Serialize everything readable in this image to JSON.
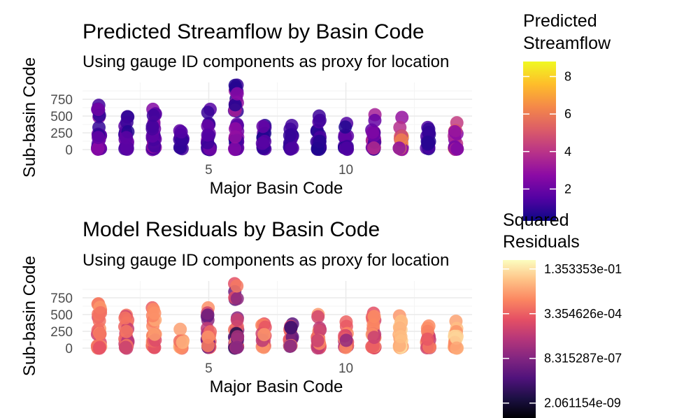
{
  "chart_data": [
    {
      "type": "scatter",
      "title": "Predicted Streamflow by Basin Code",
      "subtitle": "Using gauge ID components as proxy for location",
      "xlabel": "Major Basin Code",
      "ylabel": "Sub-basin Code",
      "xlim": [
        0.4,
        14.6
      ],
      "ylim": [
        -20,
        1000
      ],
      "x_ticks": [
        5,
        10
      ],
      "x_tick_labels": [
        "5",
        "10"
      ],
      "y_ticks": [
        0,
        250,
        500,
        750
      ],
      "y_tick_labels": [
        "0",
        "250",
        "500",
        "750"
      ],
      "grid": true,
      "legend": {
        "title_lines": [
          "Predicted",
          "Streamflow"
        ],
        "position": "right",
        "palette": "plasma",
        "range": [
          0.3,
          8.8
        ],
        "ticks": [
          2,
          4,
          6,
          8
        ],
        "tick_labels": [
          "2",
          "4",
          "6",
          "8"
        ],
        "colors": [
          "#0d0887",
          "#5302a3",
          "#8b0aa5",
          "#b83289",
          "#db5c68",
          "#f48849",
          "#febd2a",
          "#f0f921"
        ]
      },
      "groups": [
        {
          "x": 1,
          "max": 660,
          "lo": 0.8,
          "hi": 2.8
        },
        {
          "x": 2,
          "max": 490,
          "lo": 0.7,
          "hi": 2.3
        },
        {
          "x": 3,
          "max": 600,
          "lo": 0.8,
          "hi": 3.2
        },
        {
          "x": 4,
          "max": 280,
          "lo": 0.5,
          "hi": 1.8
        },
        {
          "x": 5,
          "max": 600,
          "lo": 0.5,
          "hi": 2.6
        },
        {
          "x": 6,
          "max": 960,
          "lo": 0.5,
          "hi": 3.6
        },
        {
          "x": 7,
          "max": 360,
          "lo": 0.5,
          "hi": 2.0
        },
        {
          "x": 8,
          "max": 360,
          "lo": 0.5,
          "hi": 1.6
        },
        {
          "x": 9,
          "max": 500,
          "lo": 0.5,
          "hi": 1.6
        },
        {
          "x": 10,
          "max": 390,
          "lo": 0.5,
          "hi": 2.0
        },
        {
          "x": 11,
          "max": 520,
          "lo": 0.8,
          "hi": 4.0
        },
        {
          "x": 12,
          "max": 480,
          "lo": 2.0,
          "hi": 8.0
        },
        {
          "x": 13,
          "max": 330,
          "lo": 0.5,
          "hi": 1.6
        },
        {
          "x": 14,
          "max": 400,
          "lo": 2.0,
          "hi": 6.5
        }
      ]
    },
    {
      "type": "scatter",
      "title": "Model Residuals by Basin Code",
      "subtitle": "Using gauge ID components as proxy for location",
      "xlabel": "Major Basin Code",
      "ylabel": "Sub-basin Code",
      "xlim": [
        0.4,
        14.6
      ],
      "ylim": [
        -20,
        1000
      ],
      "x_ticks": [
        5,
        10
      ],
      "x_tick_labels": [
        "5",
        "10"
      ],
      "y_ticks": [
        0,
        250,
        500,
        750
      ],
      "y_tick_labels": [
        "0",
        "250",
        "500",
        "750"
      ],
      "grid": true,
      "legend": {
        "title_lines": [
          "Squared",
          "Residuals"
        ],
        "position": "right",
        "palette": "magma",
        "scale": "log",
        "log_range": [
          -22,
          -0.8
        ],
        "ticks": [
          -2,
          -8,
          -14,
          -20
        ],
        "tick_labels": [
          "1.353353e-01",
          "3.354626e-04",
          "8.315287e-07",
          "2.061154e-09"
        ],
        "colors": [
          "#000004",
          "#1c1044",
          "#4f127b",
          "#812581",
          "#b5367a",
          "#e55064",
          "#fb8761",
          "#fec287",
          "#fcfdbf"
        ]
      },
      "groups": [
        {
          "x": 1,
          "max": 660,
          "lo": 0.55,
          "hi": 0.8
        },
        {
          "x": 2,
          "max": 490,
          "lo": 0.5,
          "hi": 0.75
        },
        {
          "x": 3,
          "max": 600,
          "lo": 0.6,
          "hi": 0.82
        },
        {
          "x": 4,
          "max": 280,
          "lo": 0.6,
          "hi": 0.85
        },
        {
          "x": 5,
          "max": 600,
          "lo": 0.3,
          "hi": 0.8
        },
        {
          "x": 6,
          "max": 960,
          "lo": 0.1,
          "hi": 0.8
        },
        {
          "x": 7,
          "max": 360,
          "lo": 0.5,
          "hi": 0.8
        },
        {
          "x": 8,
          "max": 360,
          "lo": 0.2,
          "hi": 0.8
        },
        {
          "x": 9,
          "max": 500,
          "lo": 0.5,
          "hi": 0.8
        },
        {
          "x": 10,
          "max": 390,
          "lo": 0.4,
          "hi": 0.8
        },
        {
          "x": 11,
          "max": 520,
          "lo": 0.5,
          "hi": 0.8
        },
        {
          "x": 12,
          "max": 480,
          "lo": 0.7,
          "hi": 0.95
        },
        {
          "x": 13,
          "max": 330,
          "lo": 0.5,
          "hi": 0.8
        },
        {
          "x": 14,
          "max": 400,
          "lo": 0.75,
          "hi": 0.95
        }
      ]
    }
  ]
}
